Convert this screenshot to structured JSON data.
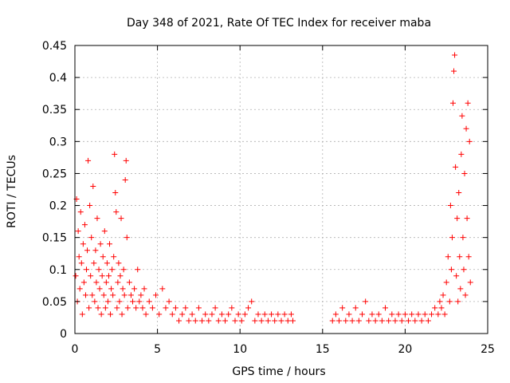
{
  "chart_data": {
    "type": "scatter",
    "title": "Day 348 of 2021, Rate Of TEC Index for receiver maba",
    "xlabel": "GPS time / hours",
    "ylabel": "ROTI / TECUs",
    "xlim": [
      0,
      25
    ],
    "ylim": [
      0,
      0.45
    ],
    "xticks": [
      "0",
      "5",
      "10",
      "15",
      "20",
      "25"
    ],
    "yticks": [
      "0",
      "0.05",
      "0.1",
      "0.15",
      "0.2",
      "0.25",
      "0.3",
      "0.35",
      "0.4",
      "0.45"
    ],
    "grid": true,
    "marker": "+",
    "color": "#ff0000",
    "series": [
      {
        "name": "ROTI",
        "points": [
          [
            0.05,
            0.09
          ],
          [
            0.1,
            0.21
          ],
          [
            0.15,
            0.05
          ],
          [
            0.2,
            0.16
          ],
          [
            0.25,
            0.12
          ],
          [
            0.3,
            0.07
          ],
          [
            0.35,
            0.19
          ],
          [
            0.4,
            0.11
          ],
          [
            0.45,
            0.03
          ],
          [
            0.5,
            0.14
          ],
          [
            0.55,
            0.08
          ],
          [
            0.6,
            0.17
          ],
          [
            0.65,
            0.06
          ],
          [
            0.7,
            0.1
          ],
          [
            0.75,
            0.13
          ],
          [
            0.8,
            0.27
          ],
          [
            0.85,
            0.04
          ],
          [
            0.9,
            0.2
          ],
          [
            0.95,
            0.09
          ],
          [
            1.0,
            0.15
          ],
          [
            1.05,
            0.06
          ],
          [
            1.1,
            0.23
          ],
          [
            1.15,
            0.11
          ],
          [
            1.2,
            0.05
          ],
          [
            1.25,
            0.13
          ],
          [
            1.3,
            0.08
          ],
          [
            1.35,
            0.18
          ],
          [
            1.4,
            0.04
          ],
          [
            1.45,
            0.1
          ],
          [
            1.5,
            0.07
          ],
          [
            1.55,
            0.14
          ],
          [
            1.6,
            0.03
          ],
          [
            1.65,
            0.09
          ],
          [
            1.7,
            0.12
          ],
          [
            1.75,
            0.06
          ],
          [
            1.8,
            0.16
          ],
          [
            1.85,
            0.04
          ],
          [
            1.9,
            0.08
          ],
          [
            1.95,
            0.11
          ],
          [
            2.0,
            0.05
          ],
          [
            2.05,
            0.09
          ],
          [
            2.1,
            0.14
          ],
          [
            2.15,
            0.03
          ],
          [
            2.2,
            0.07
          ],
          [
            2.25,
            0.1
          ],
          [
            2.3,
            0.06
          ],
          [
            2.35,
            0.12
          ],
          [
            2.4,
            0.28
          ],
          [
            2.45,
            0.22
          ],
          [
            2.5,
            0.19
          ],
          [
            2.55,
            0.04
          ],
          [
            2.6,
            0.08
          ],
          [
            2.65,
            0.11
          ],
          [
            2.7,
            0.05
          ],
          [
            2.75,
            0.09
          ],
          [
            2.8,
            0.18
          ],
          [
            2.85,
            0.03
          ],
          [
            2.9,
            0.07
          ],
          [
            2.95,
            0.1
          ],
          [
            3.0,
            0.06
          ],
          [
            3.05,
            0.24
          ],
          [
            3.1,
            0.27
          ],
          [
            3.15,
            0.15
          ],
          [
            3.2,
            0.04
          ],
          [
            3.3,
            0.08
          ],
          [
            3.4,
            0.06
          ],
          [
            3.5,
            0.05
          ],
          [
            3.6,
            0.07
          ],
          [
            3.7,
            0.04
          ],
          [
            3.8,
            0.1
          ],
          [
            3.9,
            0.05
          ],
          [
            4.0,
            0.06
          ],
          [
            4.1,
            0.04
          ],
          [
            4.2,
            0.07
          ],
          [
            4.3,
            0.03
          ],
          [
            4.5,
            0.05
          ],
          [
            4.7,
            0.04
          ],
          [
            4.9,
            0.06
          ],
          [
            5.1,
            0.03
          ],
          [
            5.3,
            0.07
          ],
          [
            5.5,
            0.04
          ],
          [
            5.7,
            0.05
          ],
          [
            5.9,
            0.03
          ],
          [
            6.1,
            0.04
          ],
          [
            6.3,
            0.02
          ],
          [
            6.5,
            0.03
          ],
          [
            6.7,
            0.04
          ],
          [
            6.9,
            0.02
          ],
          [
            7.1,
            0.03
          ],
          [
            7.3,
            0.02
          ],
          [
            7.5,
            0.04
          ],
          [
            7.7,
            0.02
          ],
          [
            7.9,
            0.03
          ],
          [
            8.1,
            0.02
          ],
          [
            8.3,
            0.03
          ],
          [
            8.5,
            0.04
          ],
          [
            8.7,
            0.02
          ],
          [
            8.9,
            0.03
          ],
          [
            9.1,
            0.02
          ],
          [
            9.3,
            0.03
          ],
          [
            9.5,
            0.04
          ],
          [
            9.7,
            0.02
          ],
          [
            9.9,
            0.03
          ],
          [
            10.1,
            0.02
          ],
          [
            10.3,
            0.03
          ],
          [
            10.5,
            0.04
          ],
          [
            10.7,
            0.05
          ],
          [
            10.9,
            0.02
          ],
          [
            11.1,
            0.03
          ],
          [
            11.3,
            0.02
          ],
          [
            11.5,
            0.03
          ],
          [
            11.7,
            0.02
          ],
          [
            11.9,
            0.03
          ],
          [
            12.1,
            0.02
          ],
          [
            12.3,
            0.03
          ],
          [
            12.5,
            0.02
          ],
          [
            12.7,
            0.03
          ],
          [
            12.9,
            0.02
          ],
          [
            13.1,
            0.03
          ],
          [
            13.2,
            0.02
          ],
          [
            15.6,
            0.02
          ],
          [
            15.8,
            0.03
          ],
          [
            16.0,
            0.02
          ],
          [
            16.2,
            0.04
          ],
          [
            16.4,
            0.02
          ],
          [
            16.6,
            0.03
          ],
          [
            16.8,
            0.02
          ],
          [
            17.0,
            0.04
          ],
          [
            17.2,
            0.02
          ],
          [
            17.4,
            0.03
          ],
          [
            17.6,
            0.05
          ],
          [
            17.8,
            0.02
          ],
          [
            18.0,
            0.03
          ],
          [
            18.2,
            0.02
          ],
          [
            18.4,
            0.03
          ],
          [
            18.6,
            0.02
          ],
          [
            18.8,
            0.04
          ],
          [
            19.0,
            0.02
          ],
          [
            19.2,
            0.03
          ],
          [
            19.4,
            0.02
          ],
          [
            19.6,
            0.03
          ],
          [
            19.8,
            0.02
          ],
          [
            20.0,
            0.03
          ],
          [
            20.2,
            0.02
          ],
          [
            20.4,
            0.03
          ],
          [
            20.6,
            0.02
          ],
          [
            20.8,
            0.03
          ],
          [
            21.0,
            0.02
          ],
          [
            21.2,
            0.03
          ],
          [
            21.4,
            0.02
          ],
          [
            21.6,
            0.03
          ],
          [
            21.8,
            0.04
          ],
          [
            22.0,
            0.03
          ],
          [
            22.1,
            0.05
          ],
          [
            22.2,
            0.04
          ],
          [
            22.3,
            0.06
          ],
          [
            22.4,
            0.03
          ],
          [
            22.5,
            0.08
          ],
          [
            22.6,
            0.12
          ],
          [
            22.7,
            0.05
          ],
          [
            22.75,
            0.2
          ],
          [
            22.8,
            0.1
          ],
          [
            22.85,
            0.15
          ],
          [
            22.9,
            0.36
          ],
          [
            22.95,
            0.41
          ],
          [
            23.0,
            0.435
          ],
          [
            23.05,
            0.26
          ],
          [
            23.1,
            0.09
          ],
          [
            23.15,
            0.18
          ],
          [
            23.2,
            0.05
          ],
          [
            23.25,
            0.22
          ],
          [
            23.3,
            0.12
          ],
          [
            23.35,
            0.07
          ],
          [
            23.4,
            0.28
          ],
          [
            23.45,
            0.34
          ],
          [
            23.5,
            0.15
          ],
          [
            23.55,
            0.1
          ],
          [
            23.6,
            0.25
          ],
          [
            23.65,
            0.06
          ],
          [
            23.7,
            0.32
          ],
          [
            23.75,
            0.18
          ],
          [
            23.8,
            0.36
          ],
          [
            23.85,
            0.12
          ],
          [
            23.9,
            0.3
          ],
          [
            23.95,
            0.08
          ]
        ]
      }
    ]
  }
}
